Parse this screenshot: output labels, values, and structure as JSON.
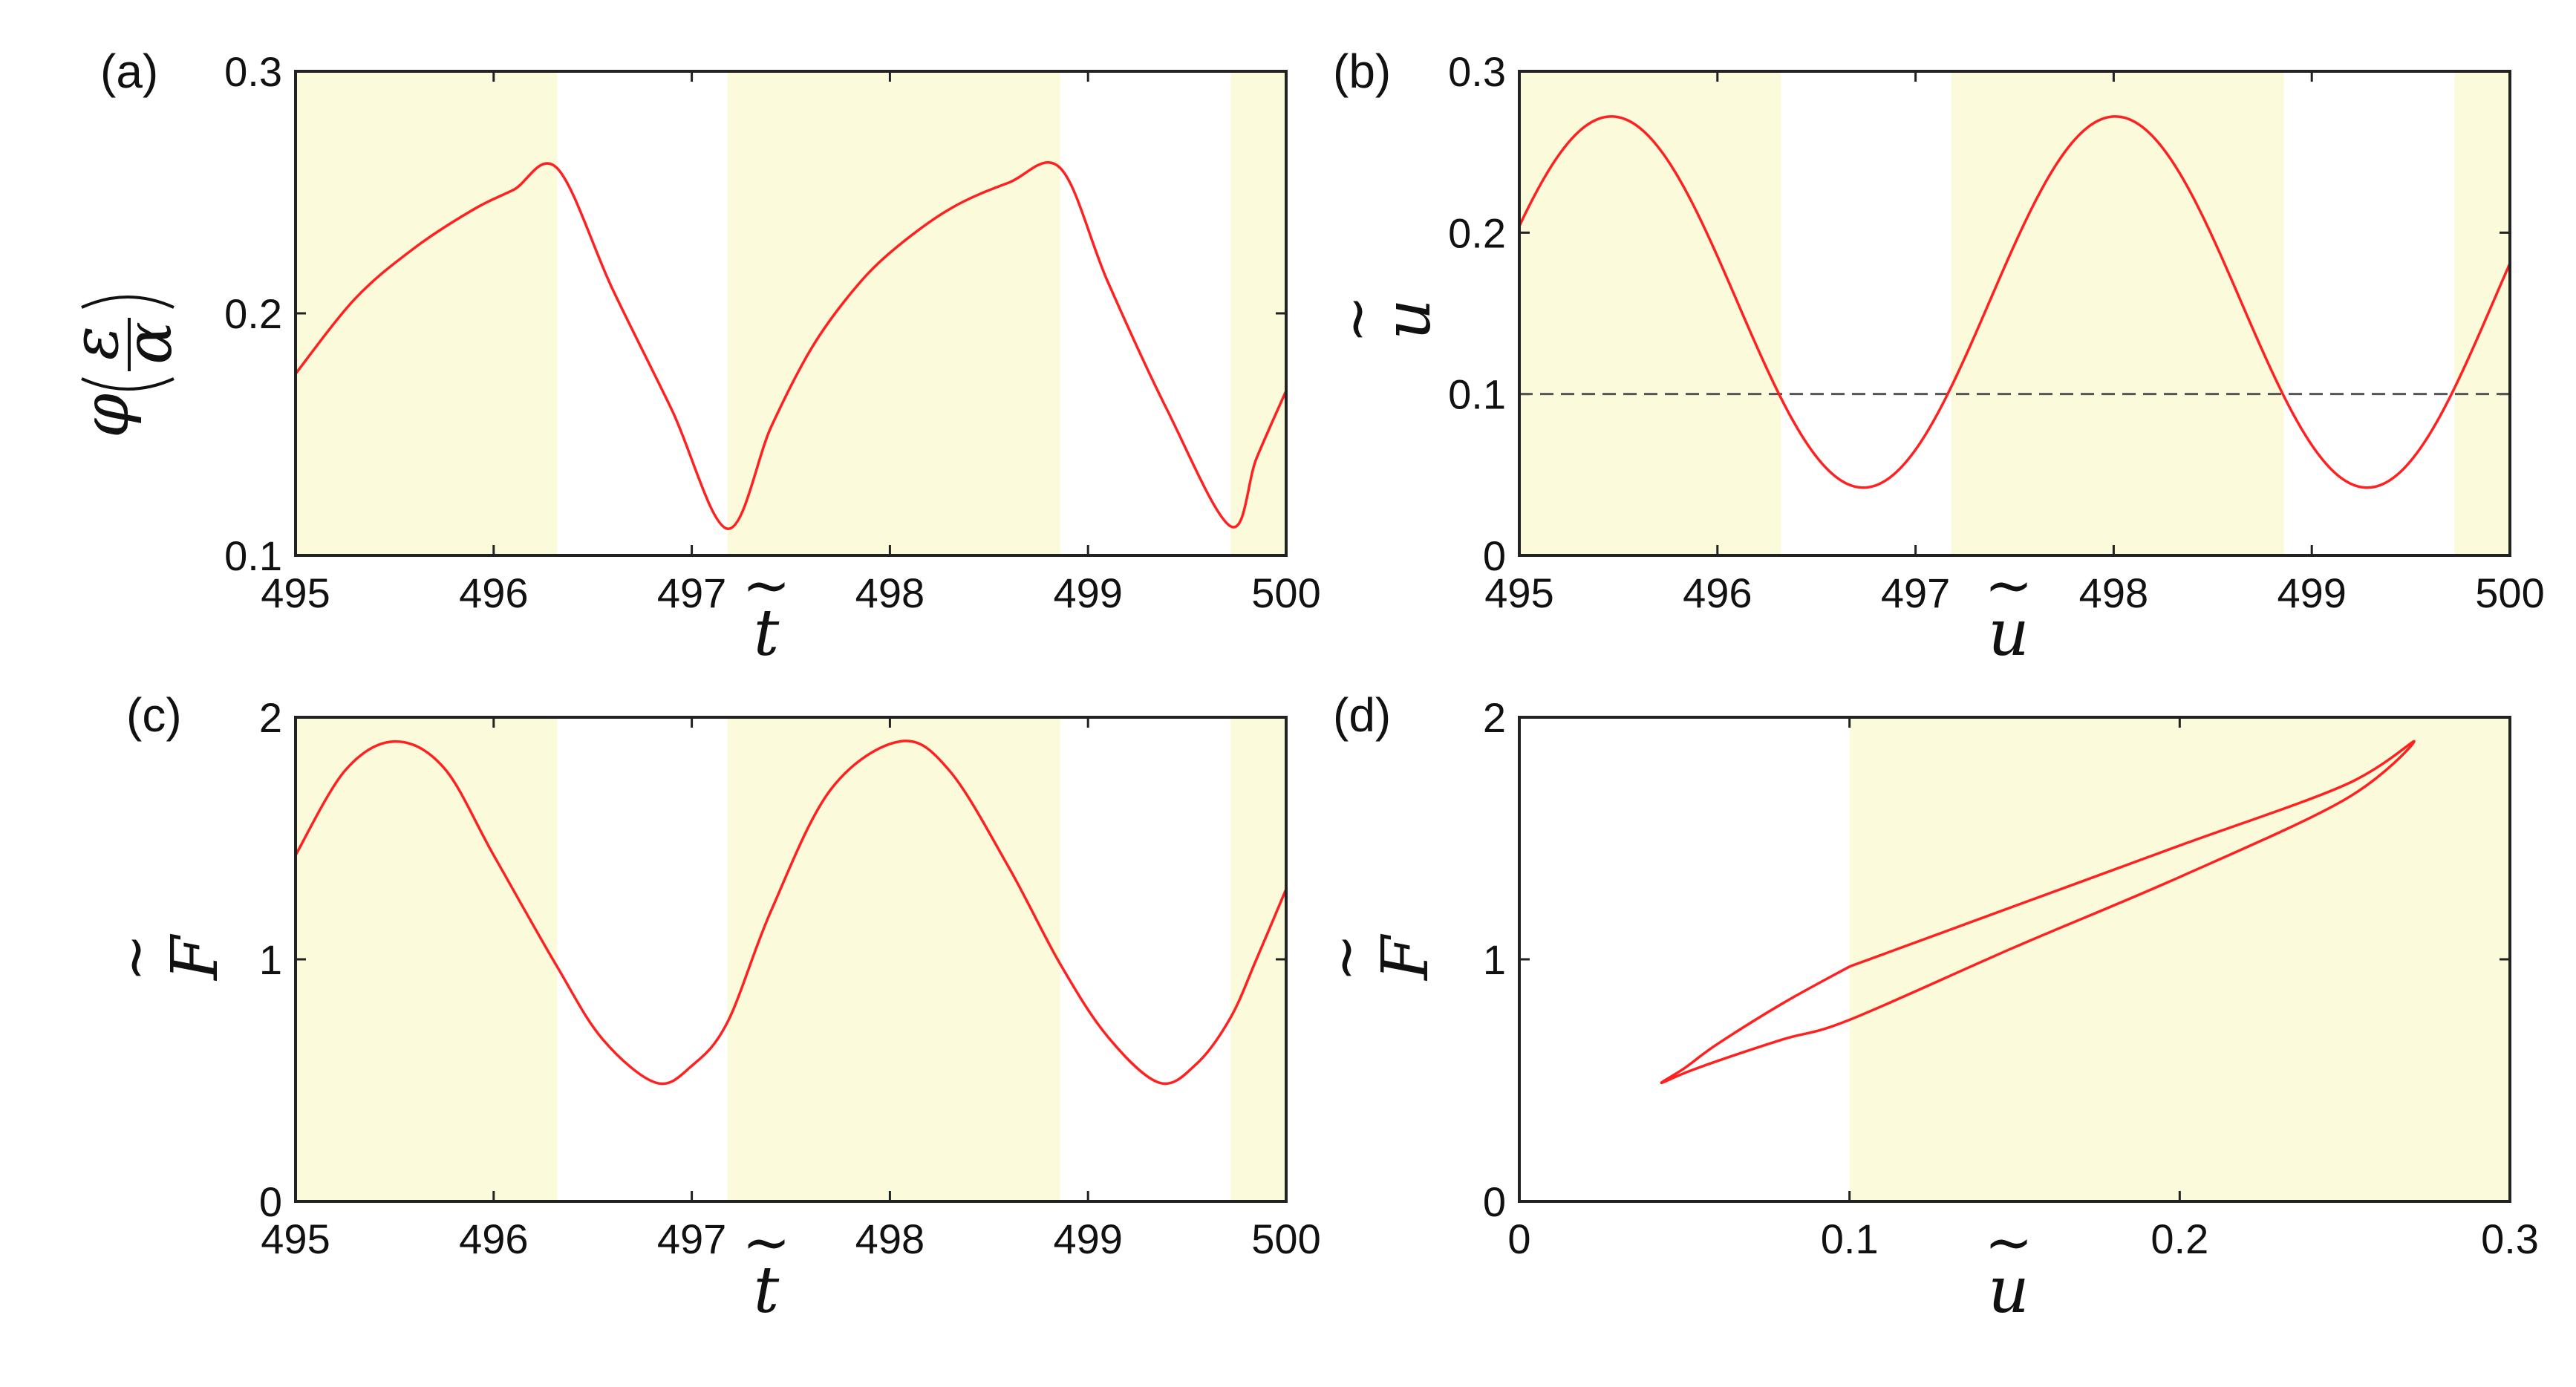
{
  "chart_data": [
    {
      "panel_label": "(a)",
      "type": "line",
      "xlim": [
        495,
        500
      ],
      "ylim": [
        0.1,
        0.3
      ],
      "x_ticks": [
        "495",
        "496",
        "497",
        "498",
        "499",
        "500"
      ],
      "y_ticks": [
        "0.1",
        "0.2",
        "0.3"
      ],
      "xlabel": "t",
      "ylabel": "φ(ε/α)",
      "ylabel_parts": {
        "main": "φ",
        "numerator": "ε",
        "denominator": "α"
      },
      "shaded_intervals": [
        [
          495.0,
          496.32
        ],
        [
          497.18,
          498.86
        ],
        [
          499.72,
          500.0
        ]
      ],
      "series": [
        {
          "name": "phi",
          "color": "#ff2020",
          "x": [
            495.0,
            495.3,
            495.6,
            495.9,
            496.1,
            496.32,
            496.6,
            496.9,
            497.18,
            497.4,
            497.6,
            497.8,
            498.0,
            498.3,
            498.6,
            498.86,
            499.1,
            499.4,
            499.72,
            499.85,
            500.0
          ],
          "y": [
            0.175,
            0.206,
            0.227,
            0.243,
            0.251,
            0.26,
            0.21,
            0.16,
            0.111,
            0.153,
            0.185,
            0.208,
            0.225,
            0.243,
            0.254,
            0.26,
            0.213,
            0.16,
            0.112,
            0.14,
            0.168
          ]
        }
      ]
    },
    {
      "panel_label": "(b)",
      "type": "line",
      "xlim": [
        495,
        500
      ],
      "ylim": [
        0,
        0.3
      ],
      "x_ticks": [
        "495",
        "496",
        "497",
        "498",
        "499",
        "500"
      ],
      "y_ticks": [
        "0",
        "0.1",
        "0.2",
        "0.3"
      ],
      "xlabel": "u",
      "ylabel": "u",
      "shaded_intervals": [
        [
          495.0,
          496.32
        ],
        [
          497.18,
          498.86
        ],
        [
          499.72,
          500.0
        ]
      ],
      "reference_line": {
        "y": 0.1,
        "style": "dashed",
        "color": "#555555"
      },
      "series": [
        {
          "name": "u",
          "color": "#ff2020",
          "function": "0.157 + 0.115*sin(2*pi*(t-495.465)/2.543 + pi/2)"
        }
      ]
    },
    {
      "panel_label": "(c)",
      "type": "line",
      "xlim": [
        495,
        500
      ],
      "ylim": [
        0,
        2
      ],
      "x_ticks": [
        "495",
        "496",
        "497",
        "498",
        "499",
        "500"
      ],
      "y_ticks": [
        "0",
        "1",
        "2"
      ],
      "xlabel": "t",
      "ylabel": "F",
      "shaded_intervals": [
        [
          495.0,
          496.32
        ],
        [
          497.18,
          498.86
        ],
        [
          499.72,
          500.0
        ]
      ],
      "series": [
        {
          "name": "F",
          "color": "#ff2020",
          "x": [
            495.0,
            495.25,
            495.5,
            495.75,
            496.0,
            496.32,
            496.55,
            496.82,
            497.0,
            497.18,
            497.4,
            497.7,
            498.05,
            498.3,
            498.6,
            498.86,
            499.1,
            499.36,
            499.55,
            499.72,
            499.85,
            500.0
          ],
          "y": [
            1.43,
            1.78,
            1.9,
            1.79,
            1.43,
            0.97,
            0.67,
            0.49,
            0.56,
            0.74,
            1.2,
            1.7,
            1.9,
            1.78,
            1.38,
            0.98,
            0.68,
            0.49,
            0.57,
            0.76,
            1.0,
            1.29
          ]
        }
      ]
    },
    {
      "panel_label": "(d)",
      "type": "line",
      "xlim": [
        0,
        0.3
      ],
      "ylim": [
        0,
        2
      ],
      "x_ticks": [
        "0",
        "0.1",
        "0.2",
        "0.3"
      ],
      "y_ticks": [
        "0",
        "1",
        "2"
      ],
      "xlabel": "u",
      "ylabel": "F",
      "shaded_intervals_x": [
        [
          0.1,
          0.3
        ]
      ],
      "series": [
        {
          "name": "F-u loop",
          "color": "#ff2020",
          "x": [
            0.1,
            0.15,
            0.2,
            0.25,
            0.271,
            0.25,
            0.2,
            0.15,
            0.1,
            0.08,
            0.06,
            0.05,
            0.043,
            0.05,
            0.06,
            0.08,
            0.1
          ],
          "y": [
            0.97,
            1.22,
            1.47,
            1.72,
            1.9,
            1.66,
            1.34,
            1.05,
            0.75,
            0.67,
            0.58,
            0.53,
            0.49,
            0.55,
            0.65,
            0.82,
            0.97
          ]
        }
      ]
    }
  ],
  "colors": {
    "shade": "#fbfbdc",
    "curve": "#ff2020",
    "axes": "#222222",
    "reference": "#555555"
  }
}
